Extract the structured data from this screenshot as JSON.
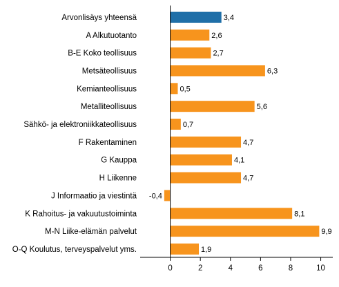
{
  "chart_data": {
    "type": "bar",
    "orientation": "horizontal",
    "title": "",
    "xlabel": "",
    "ylabel": "",
    "categories": [
      "Arvonlisäys yhteensä",
      "A Alkutuotanto",
      "B-E Koko teollisuus",
      "Metsäteollisuus",
      "Kemianteollisuus",
      "Metalliteollisuus",
      "Sähkö- ja elektroniikkateollisuus",
      "F Rakentaminen",
      "G Kauppa",
      "H Liikenne",
      "J Informaatio ja viestintä",
      "K Rahoitus- ja vakuutustoiminta",
      "M-N Liike-elämän palvelut",
      "O-Q Koulutus, terveyspalvelut yms."
    ],
    "values": [
      3.4,
      2.6,
      2.7,
      6.3,
      0.5,
      5.6,
      0.7,
      4.7,
      4.1,
      4.7,
      -0.4,
      8.1,
      9.9,
      1.9
    ],
    "value_labels": [
      "3,4",
      "2,6",
      "2,7",
      "6,3",
      "0,5",
      "5,6",
      "0,7",
      "4,7",
      "4,1",
      "4,7",
      "-0,4",
      "8,1",
      "9,9",
      "1,9"
    ],
    "xlim": [
      -2,
      10.8
    ],
    "x_ticks": [
      0,
      2,
      4,
      6,
      8,
      10
    ],
    "x_tick_labels": [
      "0",
      "2",
      "4",
      "6",
      "8",
      "10"
    ],
    "grid": false,
    "colors": {
      "highlight": "#1f6fa8",
      "bar": "#f7941d",
      "axis": "#000000"
    },
    "highlight_index": 0
  }
}
